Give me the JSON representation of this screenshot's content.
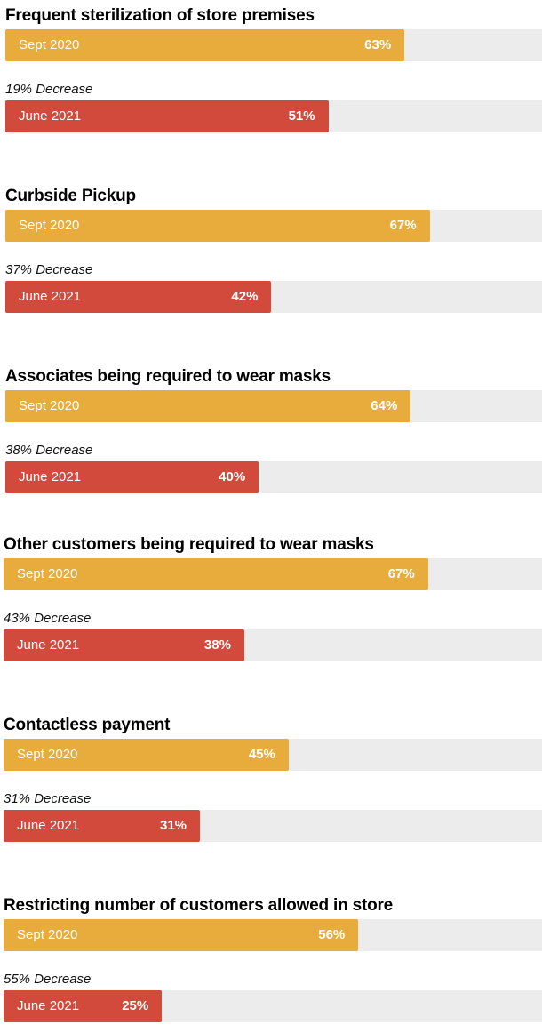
{
  "chart_data": {
    "type": "bar",
    "orientation": "horizontal",
    "xlim": [
      0,
      85
    ],
    "colors": {
      "Sept 2020": "#e8ac3c",
      "June 2021": "#d14a3c",
      "track": "#ececec"
    },
    "groups": [
      {
        "title": "Frequent sterilization of store premises",
        "change": "19% Decrease",
        "bars": [
          {
            "label": "Sept 2020",
            "value": 63,
            "value_label": "63%"
          },
          {
            "label": "June 2021",
            "value": 51,
            "value_label": "51%"
          }
        ]
      },
      {
        "title": "Curbside Pickup",
        "change": "37% Decrease",
        "bars": [
          {
            "label": "Sept 2020",
            "value": 67,
            "value_label": "67%"
          },
          {
            "label": "June 2021",
            "value": 42,
            "value_label": "42%"
          }
        ]
      },
      {
        "title": "Associates being required to wear masks",
        "change": "38% Decrease",
        "bars": [
          {
            "label": "Sept 2020",
            "value": 64,
            "value_label": "64%"
          },
          {
            "label": "June 2021",
            "value": 40,
            "value_label": "40%"
          }
        ]
      },
      {
        "title": "Other customers being required to wear masks",
        "change": "43% Decrease",
        "bars": [
          {
            "label": "Sept 2020",
            "value": 67,
            "value_label": "67%"
          },
          {
            "label": "June 2021",
            "value": 38,
            "value_label": "38%"
          }
        ]
      },
      {
        "title": "Contactless payment",
        "change": "31% Decrease",
        "bars": [
          {
            "label": "Sept 2020",
            "value": 45,
            "value_label": "45%"
          },
          {
            "label": "June 2021",
            "value": 31,
            "value_label": "31%"
          }
        ]
      },
      {
        "title": "Restricting number of customers allowed in store",
        "change": "55% Decrease",
        "bars": [
          {
            "label": "Sept 2020",
            "value": 56,
            "value_label": "56%"
          },
          {
            "label": "June 2021",
            "value": 25,
            "value_label": "25%"
          }
        ]
      }
    ]
  }
}
